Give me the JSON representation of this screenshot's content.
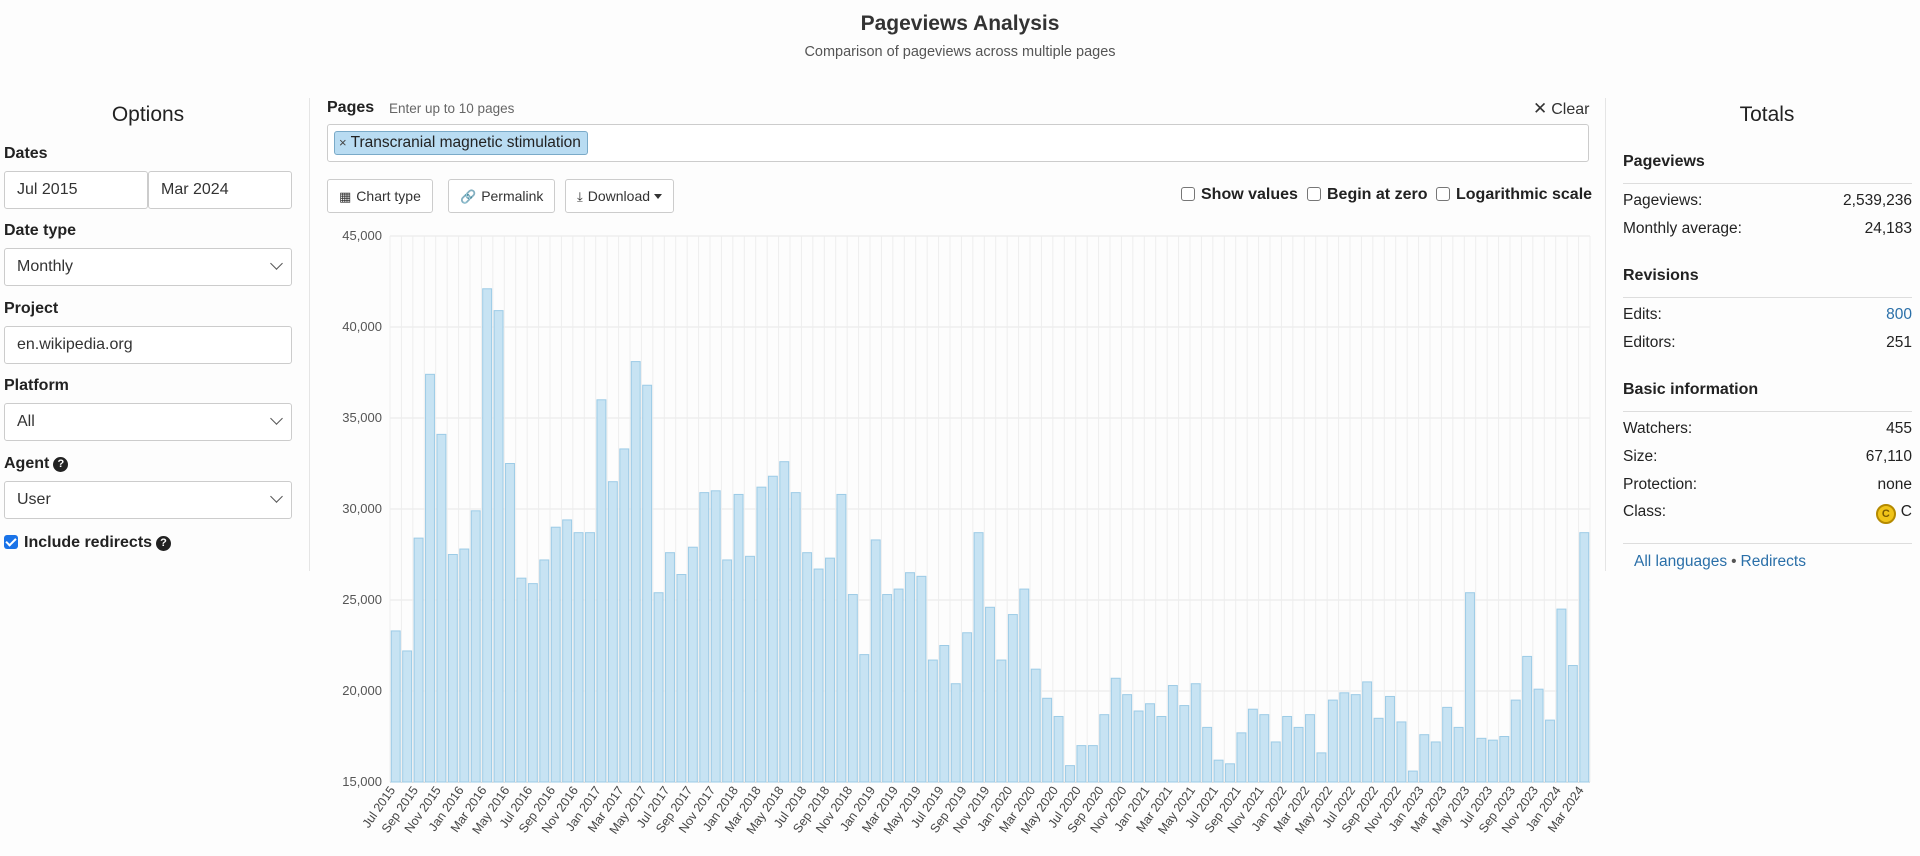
{
  "header": {
    "title": "Pageviews Analysis",
    "subtitle": "Comparison of pageviews across multiple pages"
  },
  "options": {
    "heading": "Options",
    "dates_label": "Dates",
    "start_date": "Jul 2015",
    "end_date": "Mar 2024",
    "date_type_label": "Date type",
    "date_type_value": "Monthly",
    "project_label": "Project",
    "project_value": "en.wikipedia.org",
    "platform_label": "Platform",
    "platform_value": "All",
    "agent_label": "Agent",
    "agent_value": "User",
    "include_redirects_label": "Include redirects",
    "include_redirects_checked": true
  },
  "pages": {
    "label": "Pages",
    "hint": "Enter up to 10 pages",
    "clear_label": "Clear",
    "tags": [
      "Transcranial magnetic stimulation"
    ]
  },
  "toolbar": {
    "chart_type_label": "Chart type",
    "permalink_label": "Permalink",
    "download_label": "Download",
    "show_values_label": "Show values",
    "begin_at_zero_label": "Begin at zero",
    "log_scale_label": "Logarithmic scale"
  },
  "totals": {
    "heading": "Totals",
    "pageviews_heading": "Pageviews",
    "pageviews_label": "Pageviews:",
    "pageviews_value": "2,539,236",
    "monthly_avg_label": "Monthly average:",
    "monthly_avg_value": "24,183",
    "revisions_heading": "Revisions",
    "edits_label": "Edits:",
    "edits_value": "800",
    "editors_label": "Editors:",
    "editors_value": "251",
    "basic_heading": "Basic information",
    "watchers_label": "Watchers:",
    "watchers_value": "455",
    "size_label": "Size:",
    "size_value": "67,110",
    "protection_label": "Protection:",
    "protection_value": "none",
    "class_label": "Class:",
    "class_badge": "C",
    "class_value": "C",
    "all_languages_label": "All languages",
    "redirects_label": "Redirects"
  },
  "colors": {
    "bar_fill": "#c7e3f3",
    "bar_stroke": "#9ccbe6",
    "link": "#2a6fa8",
    "checkbox_accent": "#1a73e8"
  },
  "chart_data": {
    "type": "bar",
    "ylim": [
      15000,
      45000
    ],
    "yticks": [
      15000,
      20000,
      25000,
      30000,
      35000,
      40000,
      45000
    ],
    "ytick_labels": [
      "15,000",
      "20,000",
      "25,000",
      "30,000",
      "35,000",
      "40,000",
      "45,000"
    ],
    "grid": true,
    "categories": [
      "Jul 2015",
      "Aug 2015",
      "Sep 2015",
      "Oct 2015",
      "Nov 2015",
      "Dec 2015",
      "Jan 2016",
      "Feb 2016",
      "Mar 2016",
      "Apr 2016",
      "May 2016",
      "Jun 2016",
      "Jul 2016",
      "Aug 2016",
      "Sep 2016",
      "Oct 2016",
      "Nov 2016",
      "Dec 2016",
      "Jan 2017",
      "Feb 2017",
      "Mar 2017",
      "Apr 2017",
      "May 2017",
      "Jun 2017",
      "Jul 2017",
      "Aug 2017",
      "Sep 2017",
      "Oct 2017",
      "Nov 2017",
      "Dec 2017",
      "Jan 2018",
      "Feb 2018",
      "Mar 2018",
      "Apr 2018",
      "May 2018",
      "Jun 2018",
      "Jul 2018",
      "Aug 2018",
      "Sep 2018",
      "Oct 2018",
      "Nov 2018",
      "Dec 2018",
      "Jan 2019",
      "Feb 2019",
      "Mar 2019",
      "Apr 2019",
      "May 2019",
      "Jun 2019",
      "Jul 2019",
      "Aug 2019",
      "Sep 2019",
      "Oct 2019",
      "Nov 2019",
      "Dec 2019",
      "Jan 2020",
      "Feb 2020",
      "Mar 2020",
      "Apr 2020",
      "May 2020",
      "Jun 2020",
      "Jul 2020",
      "Aug 2020",
      "Sep 2020",
      "Oct 2020",
      "Nov 2020",
      "Dec 2020",
      "Jan 2021",
      "Feb 2021",
      "Mar 2021",
      "Apr 2021",
      "May 2021",
      "Jun 2021",
      "Jul 2021",
      "Aug 2021",
      "Sep 2021",
      "Oct 2021",
      "Nov 2021",
      "Dec 2021",
      "Jan 2022",
      "Feb 2022",
      "Mar 2022",
      "Apr 2022",
      "May 2022",
      "Jun 2022",
      "Jul 2022",
      "Aug 2022",
      "Sep 2022",
      "Oct 2022",
      "Nov 2022",
      "Dec 2022",
      "Jan 2023",
      "Feb 2023",
      "Mar 2023",
      "Apr 2023",
      "May 2023",
      "Jun 2023",
      "Jul 2023",
      "Aug 2023",
      "Sep 2023",
      "Oct 2023",
      "Nov 2023",
      "Dec 2023",
      "Jan 2024",
      "Feb 2024",
      "Mar 2024"
    ],
    "xtick_labels": [
      "Jul 2015",
      "Sep 2015",
      "Nov 2015",
      "Jan 2016",
      "Mar 2016",
      "May 2016",
      "Jul 2016",
      "Sep 2016",
      "Nov 2016",
      "Jan 2017",
      "Mar 2017",
      "May 2017",
      "Jul 2017",
      "Sep 2017",
      "Nov 2017",
      "Jan 2018",
      "Mar 2018",
      "May 2018",
      "Jul 2018",
      "Sep 2018",
      "Nov 2018",
      "Jan 2019",
      "Mar 2019",
      "May 2019",
      "Jul 2019",
      "Sep 2019",
      "Nov 2019",
      "Jan 2020",
      "Mar 2020",
      "May 2020",
      "Jul 2020",
      "Sep 2020",
      "Nov 2020",
      "Jan 2021",
      "Mar 2021",
      "May 2021",
      "Jul 2021",
      "Sep 2021",
      "Nov 2021",
      "Jan 2022",
      "Mar 2022",
      "May 2022",
      "Jul 2022",
      "Sep 2022",
      "Nov 2022",
      "Jan 2023",
      "Mar 2023",
      "May 2023",
      "Jul 2023",
      "Sep 2023",
      "Nov 2023",
      "Jan 2024",
      "Mar 2024"
    ],
    "series": [
      {
        "name": "Transcranial magnetic stimulation",
        "values": [
          23300,
          22200,
          28400,
          37400,
          34100,
          27500,
          27800,
          29900,
          42100,
          40900,
          32500,
          26200,
          25900,
          27200,
          29000,
          29400,
          28700,
          28700,
          36000,
          31500,
          33300,
          38100,
          36800,
          25400,
          27600,
          26400,
          27900,
          30900,
          31000,
          27200,
          30800,
          27400,
          31200,
          31800,
          32600,
          30900,
          27600,
          26700,
          27300,
          30800,
          25300,
          22000,
          28300,
          25300,
          25600,
          26500,
          26300,
          21700,
          22500,
          20400,
          23200,
          28700,
          24600,
          21700,
          24200,
          25600,
          21200,
          19600,
          18600,
          15900,
          17000,
          17000,
          18700,
          20700,
          19800,
          18900,
          19300,
          18600,
          20300,
          19200,
          20400,
          18000,
          16200,
          16000,
          17700,
          19000,
          18700,
          17200,
          18600,
          18000,
          18700,
          16600,
          19500,
          19900,
          19800,
          20500,
          18500,
          19700,
          18300,
          15600,
          17600,
          17200,
          19100,
          18000,
          25400,
          17400,
          17300,
          17500,
          19500,
          21900,
          20100,
          18400,
          24500,
          21400,
          28700
        ]
      }
    ]
  }
}
